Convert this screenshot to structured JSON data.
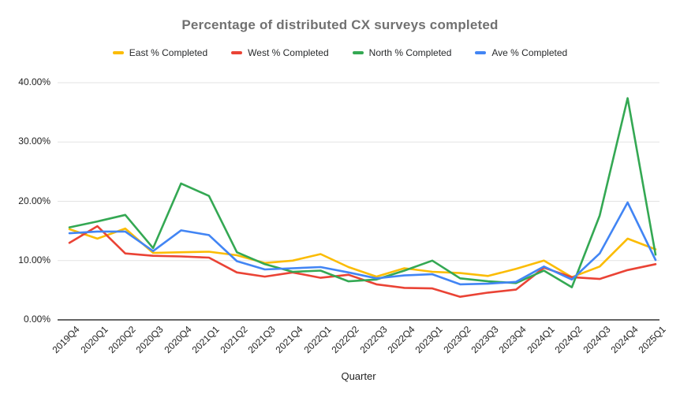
{
  "title": "Percentage of distributed CX surveys completed",
  "chart_data": {
    "type": "line",
    "title": "Percentage of distributed CX surveys completed",
    "xlabel": "Quarter",
    "ylabel": "",
    "ylim": [
      0,
      40
    ],
    "ytick_labels": [
      "0.00%",
      "10.00%",
      "20.00%",
      "30.00%",
      "40.00%"
    ],
    "ytick_values": [
      0,
      10,
      20,
      30,
      40
    ],
    "grid": true,
    "legend_position": "top",
    "categories": [
      "2019Q4",
      "2020Q1",
      "2020Q2",
      "2020Q3",
      "2020Q4",
      "2021Q1",
      "2021Q2",
      "2021Q3",
      "2021Q4",
      "2022Q1",
      "2022Q2",
      "2022Q3",
      "2022Q4",
      "2023Q1",
      "2023Q2",
      "2023Q3",
      "2023Q4",
      "2024Q1",
      "2024Q2",
      "2024Q3",
      "2024Q4",
      "2025Q1"
    ],
    "series": [
      {
        "name": "East % Completed",
        "color": "#FBBC04",
        "values": [
          15.3,
          13.7,
          15.4,
          11.3,
          11.4,
          11.5,
          10.9,
          9.6,
          10.0,
          11.1,
          8.9,
          7.3,
          8.7,
          8.1,
          7.9,
          7.4,
          8.6,
          10.0,
          7.2,
          9.0,
          13.7,
          11.9
        ]
      },
      {
        "name": "West % Completed",
        "color": "#EA4335",
        "values": [
          13.0,
          15.8,
          11.2,
          10.8,
          10.7,
          10.5,
          8.0,
          7.3,
          8.0,
          7.1,
          7.6,
          6.0,
          5.4,
          5.3,
          3.9,
          4.6,
          5.1,
          8.8,
          7.2,
          6.9,
          8.4,
          9.4
        ]
      },
      {
        "name": "North % Completed",
        "color": "#34A853",
        "values": [
          15.6,
          16.6,
          17.7,
          12.1,
          23.0,
          20.9,
          11.4,
          9.4,
          8.1,
          8.3,
          6.5,
          6.8,
          8.3,
          10.0,
          7.0,
          6.5,
          6.2,
          8.3,
          5.5,
          17.6,
          37.4,
          11.0
        ]
      },
      {
        "name": "Ave % Completed",
        "color": "#4285F4",
        "values": [
          14.6,
          14.9,
          14.9,
          11.6,
          15.1,
          14.3,
          9.9,
          8.5,
          8.7,
          8.9,
          8.0,
          7.0,
          7.5,
          7.7,
          6.0,
          6.1,
          6.4,
          9.0,
          6.8,
          11.2,
          19.8,
          10.1
        ]
      }
    ],
    "axis_colors": {
      "gridline": "#e3e3e3",
      "axis_line": "#333333"
    }
  }
}
